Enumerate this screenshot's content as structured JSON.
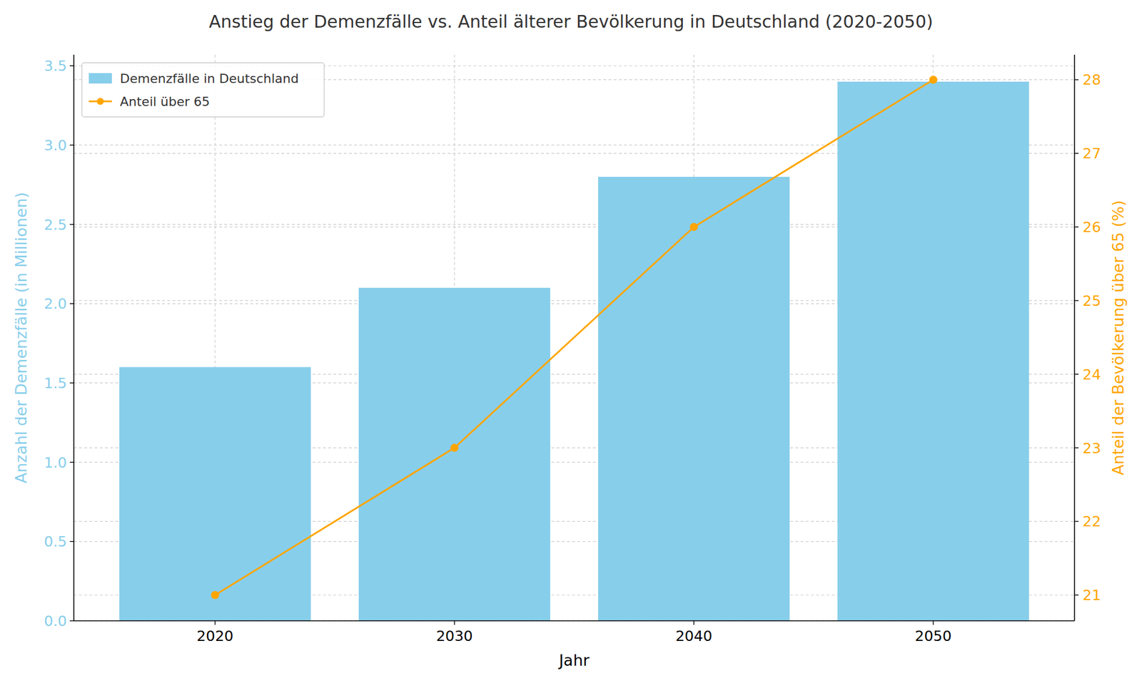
{
  "chart_data": {
    "type": "bar",
    "title": "Anstieg der Demenzfälle vs. Anteil älterer Bevölkerung in Deutschland (2020-2050)",
    "x_label": "Jahr",
    "y_label": "Anzahl der Demenzfälle (in Millionen)",
    "y2_label": "Anteil der Bevölkerung über 65 (%)",
    "categories": [
      "2020",
      "2030",
      "2040",
      "2050"
    ],
    "series": [
      {
        "name": "Demenzfälle in Deutschland",
        "type": "bar",
        "color": "#87ceeb",
        "values": [
          1.6,
          2.1,
          2.8,
          3.4
        ]
      },
      {
        "name": "Anteil über 65",
        "type": "line",
        "color": "#ffa500",
        "marker": "circle",
        "axis": "y2",
        "values": [
          21,
          23,
          26,
          28
        ]
      }
    ],
    "ylim": [
      0,
      3.57
    ],
    "yticks": [
      {
        "value": 0,
        "label": "0.0"
      },
      0.5,
      {
        "value": 1,
        "label": "1.0"
      },
      1.5,
      {
        "value": 2,
        "label": "2.0"
      },
      2.5,
      {
        "value": 3,
        "label": "3.0"
      },
      3.5
    ],
    "y2lim": [
      20.65,
      28.34
    ],
    "y2ticks": [
      21,
      22,
      23,
      24,
      25,
      26,
      27,
      28
    ],
    "grid": true,
    "legend": "upper left"
  }
}
